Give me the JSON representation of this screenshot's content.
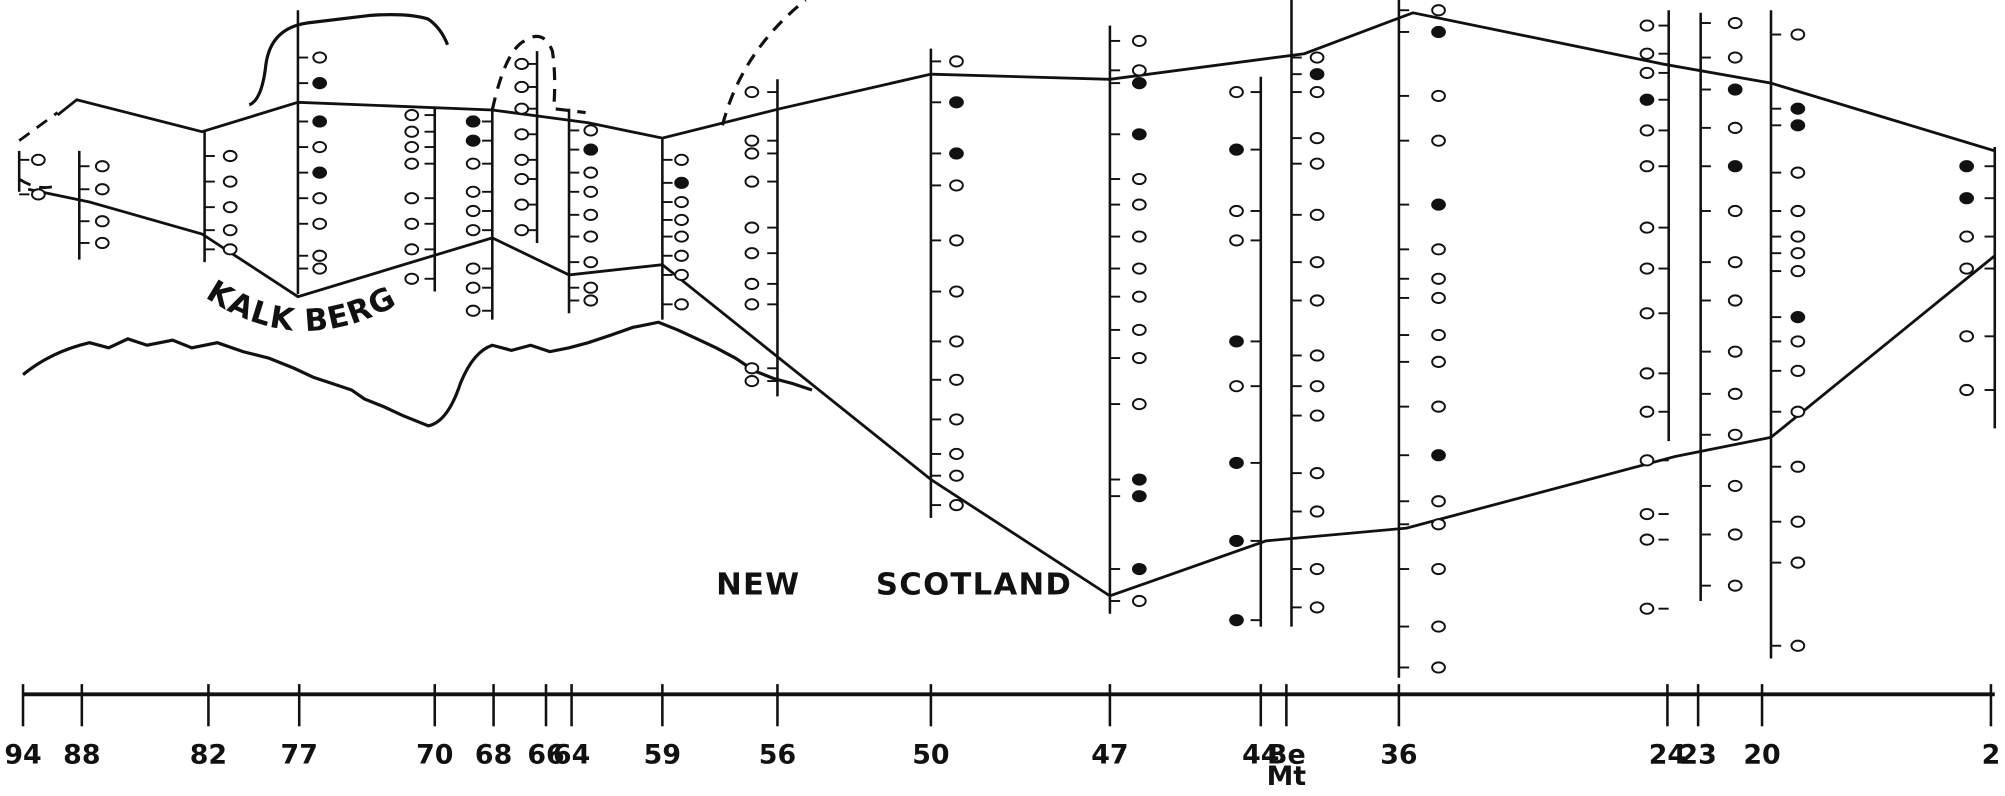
{
  "formations": {
    "upper": "KALK BERG",
    "lower_1": "NEW",
    "lower_2": "SCOTLAND"
  },
  "stations": [
    [
      "94"
    ],
    [
      "88"
    ],
    [
      "82"
    ],
    [
      "77"
    ],
    [
      "70"
    ],
    [
      "68"
    ],
    [
      "66"
    ],
    [
      "64"
    ],
    [
      "59"
    ],
    [
      "56"
    ],
    [
      "50"
    ],
    [
      "47"
    ],
    [
      "44"
    ],
    [
      "Be",
      "Mt"
    ],
    [
      "36"
    ],
    [
      "24"
    ],
    [
      "23"
    ],
    [
      "20"
    ],
    [
      "2"
    ]
  ]
}
